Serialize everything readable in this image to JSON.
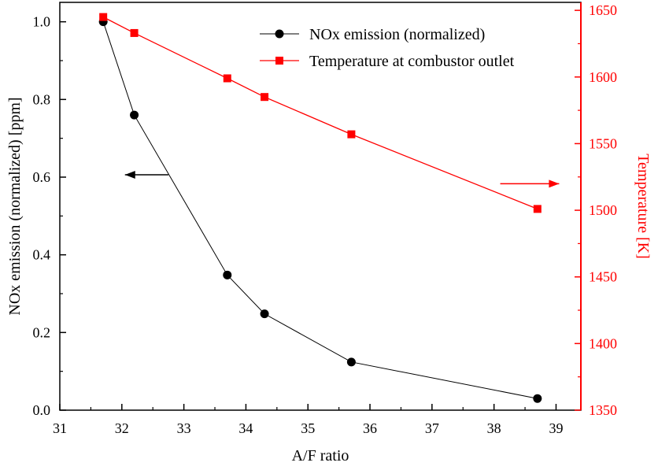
{
  "chart_data": {
    "type": "line",
    "xlabel": "A/F ratio",
    "ylabel_left": "NOx emission (normalized) [ppm]",
    "ylabel_right": "Temperature [K]",
    "xlim": [
      31,
      39.4
    ],
    "ylim_left": [
      0.0,
      1.05
    ],
    "ylim_right": [
      1350,
      1656
    ],
    "x_ticks": [
      31,
      32,
      33,
      34,
      35,
      36,
      37,
      38,
      39
    ],
    "x_tick_labels": [
      "31",
      "32",
      "33",
      "34",
      "35",
      "36",
      "37",
      "38",
      "39"
    ],
    "y_left_ticks": [
      0.0,
      0.2,
      0.4,
      0.6,
      0.8,
      1.0
    ],
    "y_left_tick_labels": [
      "0.0",
      "0.2",
      "0.4",
      "0.6",
      "0.8",
      "1.0"
    ],
    "y_right_ticks": [
      1350,
      1400,
      1450,
      1500,
      1550,
      1600,
      1650
    ],
    "y_right_tick_labels": [
      "1350",
      "1400",
      "1450",
      "1500",
      "1550",
      "1600",
      "1650"
    ],
    "colors": {
      "nox": "#000000",
      "temp": "#ff0000"
    },
    "series": [
      {
        "name": "NOx emission (normalized)",
        "axis": "left",
        "marker": "circle",
        "x": [
          31.7,
          32.2,
          33.7,
          34.3,
          35.7,
          38.7
        ],
        "y": [
          1.0,
          0.76,
          0.348,
          0.248,
          0.124,
          0.03
        ]
      },
      {
        "name": "Temperature at combustor outlet",
        "axis": "right",
        "marker": "square",
        "x": [
          31.7,
          32.2,
          33.7,
          34.3,
          35.7,
          38.7
        ],
        "y": [
          1645,
          1633,
          1599,
          1585,
          1557,
          1501
        ]
      }
    ],
    "annotations": [
      {
        "type": "arrow",
        "direction": "left",
        "series": "NOx emission (normalized)",
        "from_x": 32.75,
        "to_x": 32.05,
        "y_left": 0.606
      },
      {
        "type": "arrow",
        "direction": "right",
        "series": "Temperature at combustor outlet",
        "from_x": 38.1,
        "to_x": 39.05,
        "y_left": 0.583
      }
    ],
    "legend_position": "top-right"
  }
}
